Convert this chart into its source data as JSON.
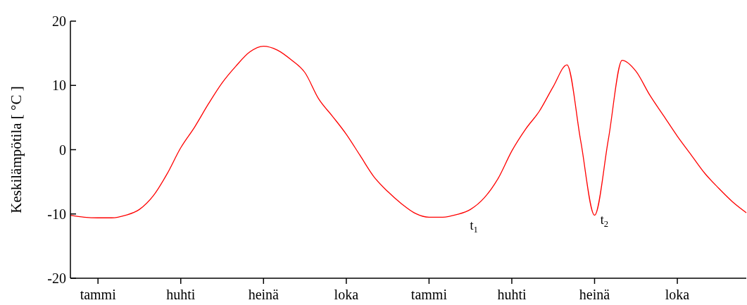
{
  "chart_data": {
    "type": "line",
    "ylabel": "Keskilämpötila [ °C ]",
    "categories": [
      null,
      null,
      "tammi",
      null,
      null,
      null,
      null,
      null,
      "huhti",
      null,
      null,
      null,
      null,
      null,
      "heinä",
      null,
      null,
      null,
      null,
      null,
      "loka",
      null,
      null,
      null,
      null,
      null,
      "tammi",
      null,
      null,
      null,
      null,
      null,
      "huhti",
      null,
      null,
      null,
      null,
      null,
      "heinä",
      null,
      null,
      null,
      null,
      null,
      "loka",
      null,
      null,
      null,
      null,
      null
    ],
    "series": [
      {
        "color": "#ff0000",
        "values": [
          -10.2,
          -10.5,
          -10.6,
          -10.6,
          -10.2,
          -9.3,
          -7.2,
          -3.8,
          0.3,
          3.5,
          7.1,
          10.4,
          13.0,
          15.2,
          16.1,
          15.5,
          14.0,
          12.0,
          7.9,
          5.2,
          2.4,
          -0.9,
          -4.2,
          -6.5,
          -8.4,
          -9.9,
          -10.5,
          -10.5,
          -10.1,
          -9.3,
          -7.5,
          -4.5,
          -0.2,
          3.2,
          6.0,
          9.8,
          13.2,
          1.3,
          -10.2,
          1.6,
          13.9,
          12.2,
          8.5,
          5.3,
          2.1,
          -0.8,
          -3.7,
          -6.0,
          -8.1,
          -9.8
        ]
      }
    ],
    "ylim": [
      -20,
      20
    ],
    "yticks": [
      -20,
      -10,
      0,
      10,
      20
    ],
    "grid": false,
    "legend": false,
    "marker": "none",
    "line_style": "solid",
    "annotations": [
      "t$_{1}$",
      "t$_{2}$"
    ]
  }
}
